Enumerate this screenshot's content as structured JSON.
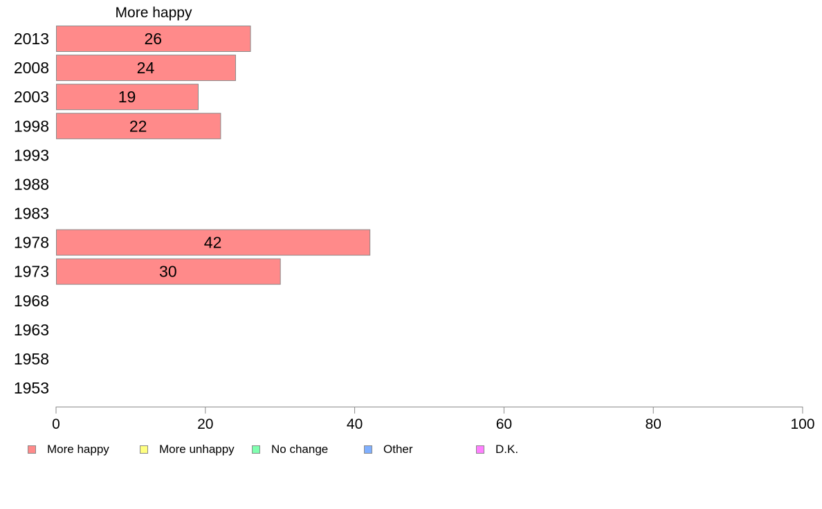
{
  "chart_data": {
    "type": "bar",
    "orientation": "horizontal",
    "title": "More happy",
    "categories": [
      "2013",
      "2008",
      "2003",
      "1998",
      "1993",
      "1988",
      "1983",
      "1978",
      "1973",
      "1968",
      "1963",
      "1958",
      "1953"
    ],
    "series": [
      {
        "name": "More happy",
        "color": "#ff8a8a",
        "values": [
          26,
          24,
          19,
          22,
          null,
          null,
          null,
          42,
          30,
          null,
          null,
          null,
          null
        ],
        "data_labels": [
          "26",
          "24",
          "19",
          "22",
          "",
          "",
          "",
          "42",
          "30",
          "",
          "",
          "",
          ""
        ]
      }
    ],
    "xlim": [
      0,
      100
    ],
    "xticks": [
      "0",
      "20",
      "40",
      "60",
      "80",
      "100"
    ],
    "grid": false,
    "legend_position": "bottom"
  },
  "legend": [
    {
      "label": "More happy",
      "color": "#ff8a8a"
    },
    {
      "label": "More unhappy",
      "color": "#ffff80"
    },
    {
      "label": "No change",
      "color": "#80ffb0"
    },
    {
      "label": "Other",
      "color": "#80b0ff"
    },
    {
      "label": "D.K.",
      "color": "#ff80ff"
    }
  ]
}
